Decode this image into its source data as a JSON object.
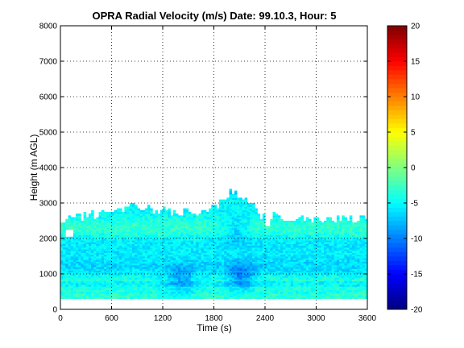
{
  "chart_data": {
    "type": "heatmap",
    "title": "OPRA Radial Velocity (m/s)  Date: 99.10.3, Hour: 5",
    "xlabel": "Time (s)",
    "ylabel": "Height (m AGL)",
    "xlim": [
      0,
      3600
    ],
    "ylim": [
      0,
      8000
    ],
    "xticks": [
      "0",
      "600",
      "1200",
      "1800",
      "2400",
      "3000",
      "3600"
    ],
    "xtick_values": [
      0,
      600,
      1200,
      1800,
      2400,
      3000,
      3600
    ],
    "yticks": [
      "0",
      "1000",
      "2000",
      "3000",
      "4000",
      "5000",
      "6000",
      "7000",
      "8000"
    ],
    "ytick_values": [
      0,
      1000,
      2000,
      3000,
      4000,
      5000,
      6000,
      7000,
      8000
    ],
    "grid": true,
    "colorbar": {
      "colormap": "jet",
      "range": [
        -20,
        20
      ],
      "ticks": [
        "20",
        "15",
        "10",
        "5",
        "0",
        "-5",
        "-10",
        "-15",
        "-20"
      ],
      "tick_values": [
        20,
        15,
        10,
        5,
        0,
        -5,
        -10,
        -15,
        -20
      ]
    },
    "data_extent": {
      "time": [
        0,
        3600
      ],
      "height_bottom": 300,
      "height_top_typical": 2550,
      "height_top_max": 3450
    },
    "velocity_typical": [
      -8,
      -2
    ],
    "velocity_min_observed": -11,
    "top_profile": [
      {
        "time": 0,
        "height": 2550
      },
      {
        "time": 120,
        "height": 2550
      },
      {
        "time": 180,
        "height": 2600
      },
      {
        "time": 700,
        "height": 2750
      },
      {
        "time": 800,
        "height": 2900
      },
      {
        "time": 1100,
        "height": 2800
      },
      {
        "time": 1500,
        "height": 2750
      },
      {
        "time": 1800,
        "height": 2850
      },
      {
        "time": 1950,
        "height": 3200
      },
      {
        "time": 2000,
        "height": 3450
      },
      {
        "time": 2100,
        "height": 3150
      },
      {
        "time": 2250,
        "height": 2950
      },
      {
        "time": 2350,
        "height": 2650
      },
      {
        "time": 3000,
        "height": 2550
      },
      {
        "time": 3600,
        "height": 2550
      }
    ],
    "dark_features": [
      {
        "time": 2100,
        "height": 900,
        "velocity": -10
      },
      {
        "time": 1400,
        "height": 800,
        "velocity": -9
      },
      {
        "time": 2050,
        "height": 2200,
        "velocity": -8
      }
    ]
  }
}
